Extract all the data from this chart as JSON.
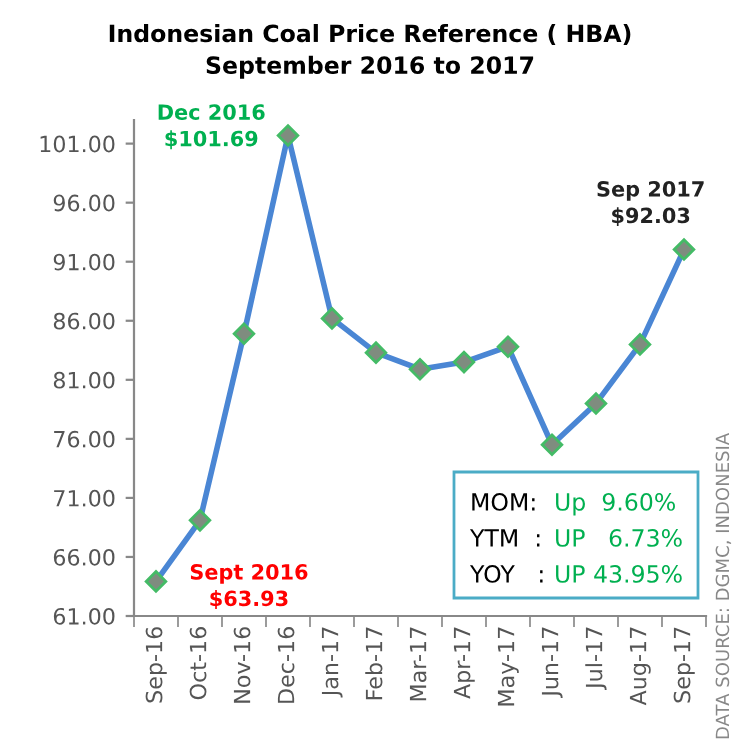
{
  "chart_data": {
    "type": "line",
    "title": "Indonesian Coal Price Reference ( HBA)\nSeptember 2016 to 2017",
    "categories": [
      "Sep-16",
      "Oct-16",
      "Nov-16",
      "Dec-16",
      "Jan-17",
      "Feb-17",
      "Mar-17",
      "Apr-17",
      "May-17",
      "Jun-17",
      "Jul-17",
      "Aug-17",
      "Sep-17"
    ],
    "series": [
      {
        "color": "#4a86d4",
        "values": [
          63.93,
          69.1,
          84.9,
          101.69,
          86.2,
          83.3,
          81.9,
          82.5,
          83.8,
          75.5,
          79.0,
          84.0,
          92.03
        ]
      }
    ],
    "ylim": [
      61,
      103
    ],
    "yticks": [
      {
        "value": 61,
        "label": "61.00"
      },
      {
        "value": 66,
        "label": "66.00"
      },
      {
        "value": 71,
        "label": "71.00"
      },
      {
        "value": 76,
        "label": "76.00"
      },
      {
        "value": 81,
        "label": "81.00"
      },
      {
        "value": 86,
        "label": "86.00"
      },
      {
        "value": 91,
        "label": "91.00"
      },
      {
        "value": 96,
        "label": "96.00"
      },
      {
        "value": 101,
        "label": "101.00"
      }
    ],
    "marker": "diamond",
    "line_style": "solid",
    "grid": false,
    "legend": false,
    "annotations": [
      {
        "text": "Dec 2016\n$101.69",
        "x": "Dec-16",
        "y": 101.69
      },
      {
        "text": "Sep 2017\n$92.03",
        "x": "Sep-17",
        "y": 92.03
      },
      {
        "text": "Sept 2016\n$63.93",
        "x": "Sep-16",
        "y": 63.93
      },
      "MOM:",
      "Up  9.60%",
      "YTM  :",
      "UP   6.73%",
      "YOY   :",
      "UP 43.95%",
      "DATA SOURCE: DGMC, INDONESIA"
    ]
  }
}
